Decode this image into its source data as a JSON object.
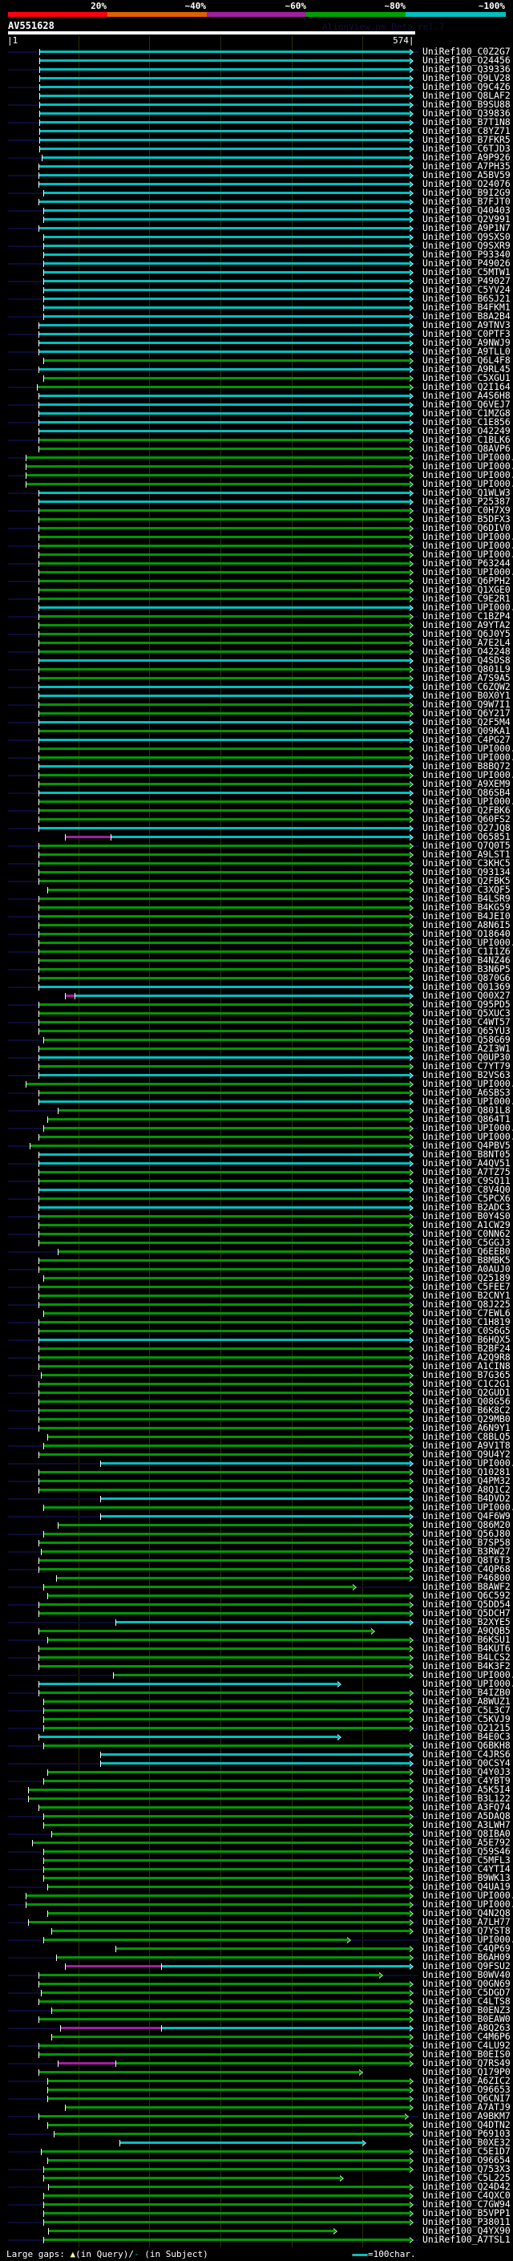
{
  "header": {
    "percent_labels": [
      "20%",
      "~40%",
      "~60%",
      "~80%",
      "~100%"
    ],
    "percent_colors": [
      "#ff0010",
      "#e06000",
      "#a020a0",
      "#00a000",
      "#00c0c0"
    ],
    "query_id": "AV551628",
    "version": "AlignView.pm Beta rel.7",
    "scale_start": "|1",
    "scale_end": "574|",
    "query_length": 574
  },
  "colors": {
    "c": "#00c0c0",
    "g": "#009900",
    "m": "#a020a0"
  },
  "rows": [
    [
      "UniRef100_C0Z2G7",
      "c",
      45,
      566
    ],
    [
      "UniRef100_O24456",
      "c",
      45,
      566
    ],
    [
      "UniRef100_Q39336",
      "c",
      45,
      566
    ],
    [
      "UniRef100_Q9LV28",
      "c",
      45,
      566
    ],
    [
      "UniRef100_Q9C4Z6",
      "c",
      45,
      566
    ],
    [
      "UniRef100_Q8LAF2",
      "c",
      45,
      566
    ],
    [
      "UniRef100_B9SU88",
      "c",
      45,
      566
    ],
    [
      "UniRef100_Q39836",
      "c",
      45,
      566
    ],
    [
      "UniRef100_B7T1N8",
      "c",
      45,
      566
    ],
    [
      "UniRef100_C8YZ71",
      "c",
      45,
      566
    ],
    [
      "UniRef100_B7FKR5",
      "c",
      45,
      566
    ],
    [
      "UniRef100_C6TJD3",
      "c",
      45,
      566
    ],
    [
      "UniRef100_A9P926",
      "c",
      48,
      566
    ],
    [
      "UniRef100_A7PH35",
      "c",
      44,
      566
    ],
    [
      "UniRef100_A5BV59",
      "c",
      44,
      566
    ],
    [
      "UniRef100_O24076",
      "c",
      44,
      566
    ],
    [
      "UniRef100_B9I2G9",
      "c",
      51,
      566
    ],
    [
      "UniRef100_B7FJT0",
      "c",
      44,
      566
    ],
    [
      "UniRef100_Q40403",
      "c",
      51,
      566
    ],
    [
      "UniRef100_Q2V991",
      "c",
      51,
      566
    ],
    [
      "UniRef100_A9P1N7",
      "c",
      44,
      566
    ],
    [
      "UniRef100_Q9SXS0",
      "c",
      51,
      566
    ],
    [
      "UniRef100_Q9SXR9",
      "c",
      51,
      566
    ],
    [
      "UniRef100_P93340",
      "c",
      51,
      566
    ],
    [
      "UniRef100_P49026",
      "c",
      51,
      566
    ],
    [
      "UniRef100_C5MTW1",
      "c",
      51,
      566
    ],
    [
      "UniRef100_P49027",
      "c",
      51,
      566
    ],
    [
      "UniRef100_C5YV24",
      "c",
      51,
      566
    ],
    [
      "UniRef100_B6SJ21",
      "c",
      51,
      566
    ],
    [
      "UniRef100_B4FKM1",
      "c",
      51,
      566
    ],
    [
      "UniRef100_B8A2B4",
      "c",
      51,
      566
    ],
    [
      "UniRef100_A9TNV3",
      "c",
      44,
      566
    ],
    [
      "UniRef100_C0PTF3",
      "c",
      44,
      566
    ],
    [
      "UniRef100_A9NWJ9",
      "c",
      44,
      566
    ],
    [
      "UniRef100_A9TLL0",
      "c",
      44,
      566
    ],
    [
      "UniRef100_Q6L4F8",
      "g",
      51,
      566
    ],
    [
      "UniRef100_A9RL45",
      "c",
      44,
      566
    ],
    [
      "UniRef100_C5XGU1",
      "g",
      51,
      566
    ],
    [
      "UniRef100_Q2I164",
      "g",
      42,
      566
    ],
    [
      "UniRef100_A4S6H8",
      "c",
      44,
      566
    ],
    [
      "UniRef100_Q6VEJ7",
      "c",
      44,
      566
    ],
    [
      "UniRef100_C1MZG8",
      "c",
      44,
      566
    ],
    [
      "UniRef100_C1E856",
      "c",
      44,
      566
    ],
    [
      "UniRef100_O42249",
      "c",
      44,
      566
    ],
    [
      "UniRef100_C1BLK6",
      "g",
      44,
      566
    ],
    [
      "UniRef100_Q8AVP6",
      "g",
      44,
      566
    ],
    [
      "UniRef100_UPI000..",
      "g",
      26,
      566
    ],
    [
      "UniRef100_UPI000..",
      "g",
      26,
      566
    ],
    [
      "UniRef100_UPI000..",
      "g",
      26,
      566
    ],
    [
      "UniRef100_UPI000..",
      "g",
      26,
      566
    ],
    [
      "UniRef100_Q1WLW3",
      "c",
      44,
      566
    ],
    [
      "UniRef100_P25387",
      "c",
      44,
      566
    ],
    [
      "UniRef100_C0H7X9",
      "g",
      44,
      566
    ],
    [
      "UniRef100_B5DFX3",
      "g",
      44,
      566
    ],
    [
      "UniRef100_Q6DIV0",
      "g",
      44,
      566
    ],
    [
      "UniRef100_UPI000..",
      "g",
      44,
      566
    ],
    [
      "UniRef100_UPI000..",
      "g",
      44,
      566
    ],
    [
      "UniRef100_UPI000..",
      "g",
      44,
      566
    ],
    [
      "UniRef100_P63244",
      "g",
      44,
      566
    ],
    [
      "UniRef100_UPI000..",
      "g",
      44,
      566
    ],
    [
      "UniRef100_Q6PPH2",
      "g",
      44,
      566
    ],
    [
      "UniRef100_Q1XGE0",
      "g",
      44,
      566
    ],
    [
      "UniRef100_C9E2R1",
      "g",
      44,
      566
    ],
    [
      "UniRef100_UPI000..",
      "c",
      44,
      566
    ],
    [
      "UniRef100_C1BZP4",
      "g",
      44,
      566
    ],
    [
      "UniRef100_A9YTA2",
      "g",
      44,
      566
    ],
    [
      "UniRef100_Q6J0Y5",
      "g",
      44,
      566
    ],
    [
      "UniRef100_A7E2L4",
      "g",
      44,
      566
    ],
    [
      "UniRef100_O42248",
      "g",
      44,
      566
    ],
    [
      "UniRef100_Q4SDS8",
      "c",
      44,
      566
    ],
    [
      "UniRef100_Q801L9",
      "g",
      44,
      566
    ],
    [
      "UniRef100_A7S9A5",
      "g",
      44,
      566
    ],
    [
      "UniRef100_C6ZQW2",
      "c",
      44,
      566
    ],
    [
      "UniRef100_B0X0Y1",
      "c",
      44,
      566
    ],
    [
      "UniRef100_Q9W7I1",
      "g",
      44,
      566
    ],
    [
      "UniRef100_Q6Y217",
      "g",
      44,
      566
    ],
    [
      "UniRef100_Q2F5M4",
      "c",
      44,
      566
    ],
    [
      "UniRef100_Q09KA1",
      "g",
      44,
      566
    ],
    [
      "UniRef100_C4PG27",
      "c",
      44,
      566
    ],
    [
      "UniRef100_UPI000..",
      "g",
      44,
      566
    ],
    [
      "UniRef100_UPI000..",
      "g",
      44,
      566
    ],
    [
      "UniRef100_B8BQ72",
      "c",
      44,
      566
    ],
    [
      "UniRef100_UPI000..",
      "g",
      44,
      566
    ],
    [
      "UniRef100_A9XEM9",
      "g",
      44,
      566
    ],
    [
      "UniRef100_Q86SB4",
      "c",
      44,
      566
    ],
    [
      "UniRef100_UPI000..",
      "g",
      44,
      566
    ],
    [
      "UniRef100_Q2FBK6",
      "g",
      44,
      566
    ],
    [
      "UniRef100_Q60FS2",
      "g",
      44,
      566
    ],
    [
      "UniRef100_Q27JQ8",
      "c",
      44,
      566
    ],
    [
      "UniRef100_O65851",
      "c",
      81,
      566,
      145
    ],
    [
      "UniRef100_Q7Q0T5",
      "g",
      44,
      566
    ],
    [
      "UniRef100_A9LST1",
      "g",
      44,
      566
    ],
    [
      "UniRef100_C3KHC5",
      "g",
      44,
      566
    ],
    [
      "UniRef100_Q93134",
      "g",
      44,
      566
    ],
    [
      "UniRef100_Q2FBK5",
      "g",
      44,
      566
    ],
    [
      "UniRef100_C3XQF5",
      "g",
      56,
      566
    ],
    [
      "UniRef100_B4LSR9",
      "g",
      44,
      566
    ],
    [
      "UniRef100_B4KG59",
      "g",
      44,
      566
    ],
    [
      "UniRef100_B4JEI0",
      "g",
      44,
      566
    ],
    [
      "UniRef100_A8N6I5",
      "g",
      44,
      566
    ],
    [
      "UniRef100_O18640",
      "g",
      44,
      566
    ],
    [
      "UniRef100_UPI000..",
      "g",
      44,
      566
    ],
    [
      "UniRef100_C1I1Z6",
      "g",
      44,
      566
    ],
    [
      "UniRef100_B4NZ46",
      "g",
      44,
      566
    ],
    [
      "UniRef100_B3N6P5",
      "g",
      44,
      566
    ],
    [
      "UniRef100_Q870G6",
      "g",
      44,
      566
    ],
    [
      "UniRef100_Q01369",
      "c",
      44,
      566
    ],
    [
      "UniRef100_Q00X27",
      "c",
      81,
      566,
      95
    ],
    [
      "UniRef100_Q95PD5",
      "g",
      44,
      566
    ],
    [
      "UniRef100_Q5XUC3",
      "g",
      44,
      566
    ],
    [
      "UniRef100_C4WT57",
      "g",
      44,
      566
    ],
    [
      "UniRef100_Q65YU3",
      "g",
      44,
      566
    ],
    [
      "UniRef100_Q58G69",
      "g",
      51,
      566
    ],
    [
      "UniRef100_A2I3W1",
      "g",
      44,
      566
    ],
    [
      "UniRef100_Q0UP30",
      "c",
      44,
      566
    ],
    [
      "UniRef100_C7YT79",
      "g",
      44,
      566
    ],
    [
      "UniRef100_B2VS63",
      "c",
      44,
      566
    ],
    [
      "UniRef100_UPI000..",
      "g",
      26,
      566
    ],
    [
      "UniRef100_A6SBS3",
      "g",
      44,
      566
    ],
    [
      "UniRef100_UPI000..",
      "c",
      44,
      566
    ],
    [
      "UniRef100_Q801L8",
      "g",
      71,
      566
    ],
    [
      "UniRef100_Q864T1",
      "g",
      56,
      566
    ],
    [
      "UniRef100_UPI000..",
      "g",
      51,
      566
    ],
    [
      "UniRef100_UPI000..",
      "g",
      44,
      566
    ],
    [
      "UniRef100_Q4PBV5",
      "g",
      32,
      566
    ],
    [
      "UniRef100_B8NT05",
      "c",
      44,
      566
    ],
    [
      "UniRef100_A4QV51",
      "c",
      44,
      566
    ],
    [
      "UniRef100_A7TZ75",
      "g",
      44,
      566
    ],
    [
      "UniRef100_C9SQ11",
      "g",
      44,
      566
    ],
    [
      "UniRef100_C8V4Q0",
      "c",
      44,
      566
    ],
    [
      "UniRef100_C5PCX6",
      "g",
      44,
      566
    ],
    [
      "UniRef100_B2ADC3",
      "c",
      44,
      566
    ],
    [
      "UniRef100_B0Y4S0",
      "g",
      44,
      566
    ],
    [
      "UniRef100_A1CW29",
      "g",
      44,
      566
    ],
    [
      "UniRef100_C0NN62",
      "g",
      44,
      566
    ],
    [
      "UniRef100_C5GGJ3",
      "g",
      44,
      566
    ],
    [
      "UniRef100_Q6EEB0",
      "g",
      71,
      566
    ],
    [
      "UniRef100_B8MBK5",
      "g",
      44,
      566
    ],
    [
      "UniRef100_A0AUJ0",
      "g",
      44,
      566
    ],
    [
      "UniRef100_Q25189",
      "g",
      51,
      566
    ],
    [
      "UniRef100_C5FEE7",
      "g",
      44,
      566
    ],
    [
      "UniRef100_B2CNY1",
      "g",
      44,
      566
    ],
    [
      "UniRef100_Q8J225",
      "g",
      44,
      566
    ],
    [
      "UniRef100_C7EWL6",
      "g",
      51,
      566
    ],
    [
      "UniRef100_C1H819",
      "g",
      44,
      566
    ],
    [
      "UniRef100_C0S6G5",
      "g",
      44,
      566
    ],
    [
      "UniRef100_B6HQX5",
      "c",
      44,
      566
    ],
    [
      "UniRef100_B2BF24",
      "g",
      44,
      566
    ],
    [
      "UniRef100_A2Q9R8",
      "g",
      44,
      566
    ],
    [
      "UniRef100_A1CIN8",
      "g",
      44,
      566
    ],
    [
      "UniRef100_B7G365",
      "g",
      47,
      566
    ],
    [
      "UniRef100_C1C2G1",
      "g",
      44,
      566
    ],
    [
      "UniRef100_Q2GUD1",
      "g",
      44,
      566
    ],
    [
      "UniRef100_Q08G56",
      "g",
      44,
      566
    ],
    [
      "UniRef100_B6K8C2",
      "g",
      44,
      566
    ],
    [
      "UniRef100_Q29MB0",
      "g",
      44,
      566
    ],
    [
      "UniRef100_A6N9Y1",
      "g",
      44,
      566
    ],
    [
      "UniRef100_C8BLQ5",
      "g",
      56,
      566
    ],
    [
      "UniRef100_A9V1T8",
      "g",
      51,
      566
    ],
    [
      "UniRef100_Q9U4Y2",
      "g",
      44,
      566
    ],
    [
      "UniRef100_UPI000..",
      "c",
      131,
      566
    ],
    [
      "UniRef100_Q10281",
      "g",
      44,
      566
    ],
    [
      "UniRef100_Q4PM32",
      "g",
      44,
      566
    ],
    [
      "UniRef100_A8Q1C2",
      "g",
      44,
      566
    ],
    [
      "UniRef100_B4DVD2",
      "c",
      131,
      566
    ],
    [
      "UniRef100_UPI000..",
      "g",
      51,
      566
    ],
    [
      "UniRef100_Q4F6W9",
      "c",
      131,
      566
    ],
    [
      "UniRef100_Q86M20",
      "g",
      71,
      566
    ],
    [
      "UniRef100_Q56J80",
      "g",
      51,
      566
    ],
    [
      "UniRef100_B7SP58",
      "g",
      44,
      566
    ],
    [
      "UniRef100_B3RW27",
      "g",
      47,
      566
    ],
    [
      "UniRef100_Q8T6T3",
      "g",
      44,
      566
    ],
    [
      "UniRef100_C4QP68",
      "g",
      44,
      566
    ],
    [
      "UniRef100_P46800",
      "g",
      69,
      566
    ],
    [
      "UniRef100_B8AWF2",
      "g",
      51,
      486
    ],
    [
      "UniRef100_Q6C592",
      "g",
      56,
      566
    ],
    [
      "UniRef100_Q5DD54",
      "g",
      44,
      566
    ],
    [
      "UniRef100_Q5DCH7",
      "g",
      44,
      566
    ],
    [
      "UniRef100_B2XYE5",
      "c",
      152,
      566
    ],
    [
      "UniRef100_A9QQB5",
      "g",
      44,
      512
    ],
    [
      "UniRef100_B6KSU1",
      "g",
      56,
      566
    ],
    [
      "UniRef100_B4KUT6",
      "g",
      44,
      566
    ],
    [
      "UniRef100_B4LCS2",
      "g",
      44,
      566
    ],
    [
      "UniRef100_B4K3F2",
      "g",
      44,
      566
    ],
    [
      "UniRef100_UPI000..",
      "g",
      149,
      566
    ],
    [
      "UniRef100_UPI000..",
      "c",
      44,
      465
    ],
    [
      "UniRef100_B4IZB0",
      "g",
      44,
      566
    ],
    [
      "UniRef100_A8WUZ1",
      "g",
      51,
      566
    ],
    [
      "UniRef100_C5L3C7",
      "g",
      51,
      566
    ],
    [
      "UniRef100_C5KVJ9",
      "g",
      51,
      566
    ],
    [
      "UniRef100_Q21215",
      "g",
      51,
      566
    ],
    [
      "UniRef100_B4E0C3",
      "c",
      44,
      465
    ],
    [
      "UniRef100_Q6BKH8",
      "g",
      51,
      566
    ],
    [
      "UniRef100_C4JRS6",
      "c",
      131,
      566
    ],
    [
      "UniRef100_Q0CSY4",
      "c",
      131,
      566
    ],
    [
      "UniRef100_Q4Y0J3",
      "g",
      56,
      566
    ],
    [
      "UniRef100_C4YBT9",
      "g",
      51,
      566
    ],
    [
      "UniRef100_A5K5I4",
      "g",
      29,
      566
    ],
    [
      "UniRef100_B3L122",
      "g",
      29,
      566
    ],
    [
      "UniRef100_A3FQ74",
      "g",
      44,
      566
    ],
    [
      "UniRef100_A5DAQ8",
      "g",
      51,
      566
    ],
    [
      "UniRef100_A3LWH7",
      "g",
      51,
      566
    ],
    [
      "UniRef100_Q8IBA0",
      "g",
      62,
      566
    ],
    [
      "UniRef100_A5E792",
      "g",
      35,
      566
    ],
    [
      "UniRef100_Q59S46",
      "g",
      51,
      566
    ],
    [
      "UniRef100_C5MFL3",
      "g",
      51,
      566
    ],
    [
      "UniRef100_C4YTI4",
      "g",
      51,
      566
    ],
    [
      "UniRef100_B9WK13",
      "g",
      51,
      566
    ],
    [
      "UniRef100_Q4UA19",
      "g",
      56,
      566
    ],
    [
      "UniRef100_UPI000..",
      "g",
      26,
      566
    ],
    [
      "UniRef100_UPI000..",
      "g",
      26,
      566
    ],
    [
      "UniRef100_Q4N2Q8",
      "g",
      56,
      566
    ],
    [
      "UniRef100_A7LH77",
      "g",
      29,
      566
    ],
    [
      "UniRef100_Q7YST8",
      "g",
      62,
      566
    ],
    [
      "UniRef100_UPI000..",
      "g",
      51,
      478
    ],
    [
      "UniRef100_C4QP69",
      "g",
      152,
      566
    ],
    [
      "UniRef100_B6AH09",
      "g",
      69,
      566
    ],
    [
      "UniRef100_Q9FSU2",
      "c",
      81,
      566,
      217
    ],
    [
      "UniRef100_B0WV40",
      "g",
      44,
      523
    ],
    [
      "UniRef100_Q0GN69",
      "g",
      44,
      566
    ],
    [
      "UniRef100_C5DGD7",
      "g",
      47,
      566
    ],
    [
      "UniRef100_C4LTS8",
      "g",
      44,
      566
    ],
    [
      "UniRef100_B0ENZ3",
      "g",
      62,
      566
    ],
    [
      "UniRef100_B0EAW0",
      "g",
      44,
      566
    ],
    [
      "UniRef100_A8Q263",
      "c",
      74,
      566,
      217
    ],
    [
      "UniRef100_C4M6P6",
      "g",
      62,
      566
    ],
    [
      "UniRef100_C4LU92",
      "g",
      44,
      566
    ],
    [
      "UniRef100_B0EIS0",
      "g",
      44,
      566
    ],
    [
      "UniRef100_Q7RS49",
      "g",
      71,
      566,
      152
    ],
    [
      "UniRef100_Q179P0",
      "g",
      44,
      495
    ],
    [
      "UniRef100_A6ZIC2",
      "g",
      56,
      566
    ],
    [
      "UniRef100_O96653",
      "g",
      56,
      566
    ],
    [
      "UniRef100_Q6CNI7",
      "g",
      56,
      566
    ],
    [
      "UniRef100_A7ATJ9",
      "g",
      81,
      566
    ],
    [
      "UniRef100_A9BKM7",
      "g",
      44,
      559
    ],
    [
      "UniRef100_Q4DTN2",
      "g",
      56,
      566
    ],
    [
      "UniRef100_P69103",
      "g",
      65,
      566
    ],
    [
      "UniRef100_B0XE32",
      "c",
      158,
      499
    ],
    [
      "UniRef100_C5E1D7",
      "g",
      47,
      566
    ],
    [
      "UniRef100_O96654",
      "g",
      56,
      566
    ],
    [
      "UniRef100_Q753X3",
      "g",
      51,
      566
    ],
    [
      "UniRef100_C5L225",
      "g",
      51,
      468
    ],
    [
      "UniRef100_Q24D42",
      "g",
      57,
      566
    ],
    [
      "UniRef100_C4QXC0",
      "g",
      51,
      566
    ],
    [
      "UniRef100_C7GW94",
      "g",
      51,
      566
    ],
    [
      "UniRef100_B5VPP1",
      "g",
      51,
      566
    ],
    [
      "UniRef100_P38011",
      "g",
      51,
      566
    ],
    [
      "UniRef100_Q4YX90",
      "g",
      57,
      459
    ],
    [
      "UniRef100_A7TSL1",
      "g",
      51,
      566
    ]
  ],
  "footer": {
    "large_gaps_label": "Large gaps:",
    "query_gap_icon": "▲",
    "query_gap_text": "(in Query)/",
    "subject_gap_icon": "-",
    "subject_gap_text": " (in Subject)",
    "scale_legend": "=100char."
  }
}
